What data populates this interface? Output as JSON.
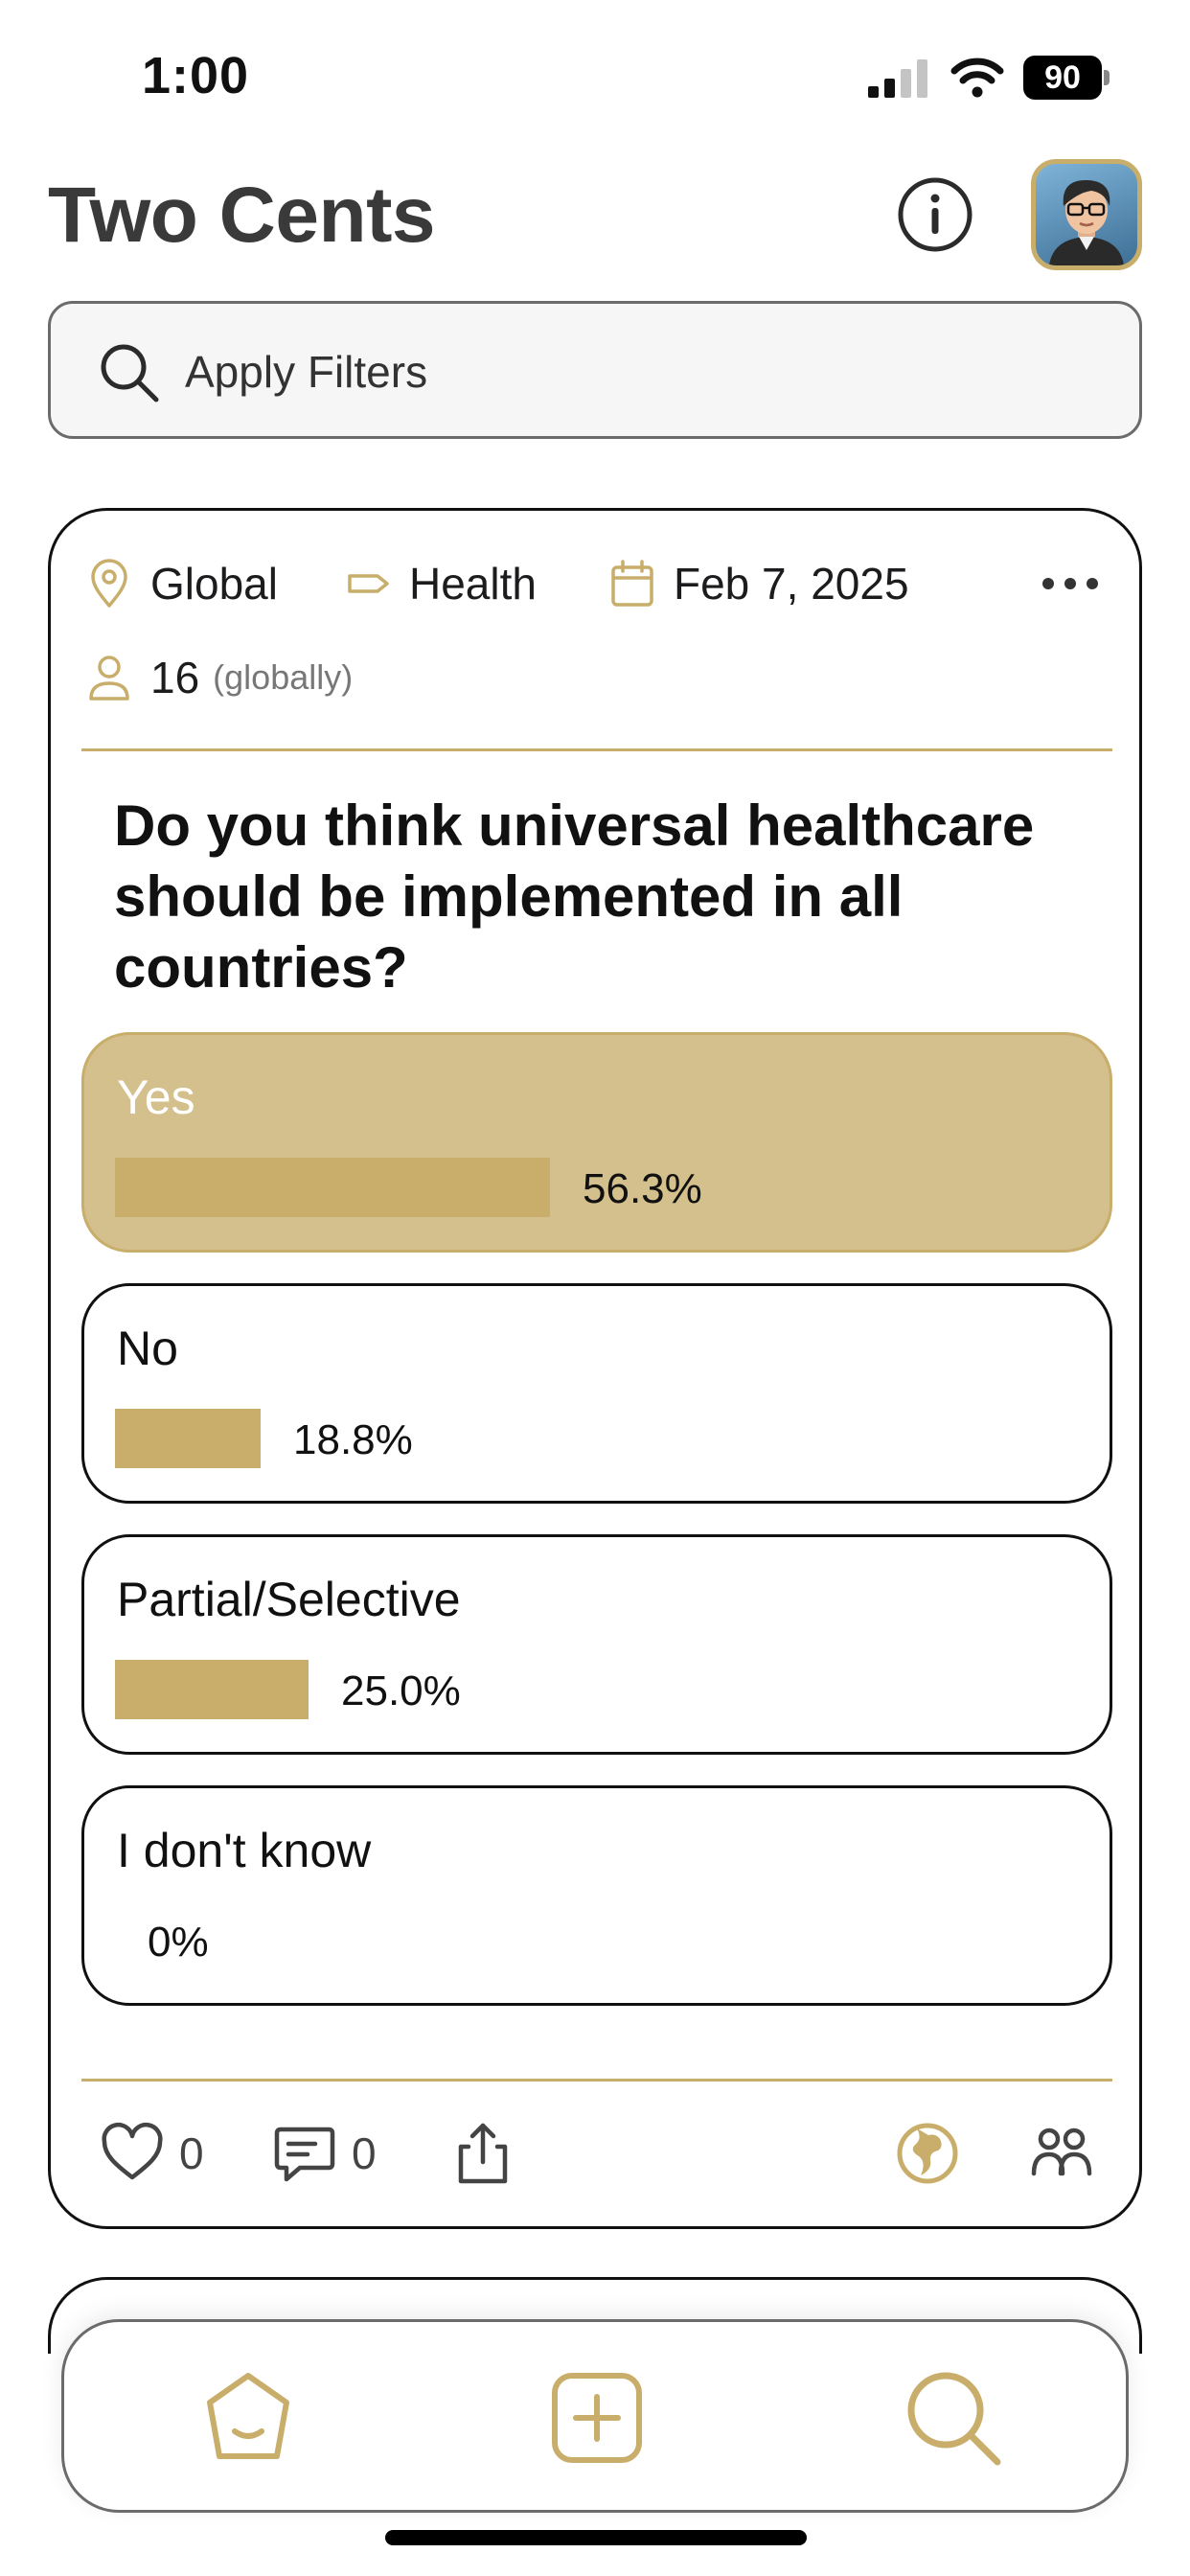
{
  "status_bar": {
    "time": "1:00",
    "battery": "90"
  },
  "header": {
    "title": "Two Cents"
  },
  "search": {
    "label": "Apply Filters"
  },
  "poll": {
    "location": "Global",
    "category": "Health",
    "date": "Feb 7, 2025",
    "participants": "16",
    "participants_scope": "(globally)",
    "question": "Do you think universal healthcare should be implemented in all countries?",
    "options": [
      {
        "label": "Yes",
        "percent": "56.3%",
        "share": 0.563,
        "selected": true
      },
      {
        "label": "No",
        "percent": "18.8%",
        "share": 0.188,
        "selected": false
      },
      {
        "label": "Partial/Selective",
        "percent": "25.0%",
        "share": 0.25,
        "selected": false
      },
      {
        "label": "I don't know",
        "percent": "0%",
        "share": 0.0,
        "selected": false
      }
    ],
    "likes": "0",
    "comments": "0"
  },
  "colors": {
    "accent": "#c8ae6a",
    "selected_bg": "#d4c08c",
    "text": "#1c1c1e"
  },
  "icons": [
    "info-icon",
    "location-pin-icon",
    "tag-icon",
    "calendar-icon",
    "person-icon",
    "more-icon",
    "heart-icon",
    "comment-icon",
    "share-icon",
    "globe-icon",
    "group-icon",
    "home-icon",
    "add-icon",
    "search-icon"
  ]
}
